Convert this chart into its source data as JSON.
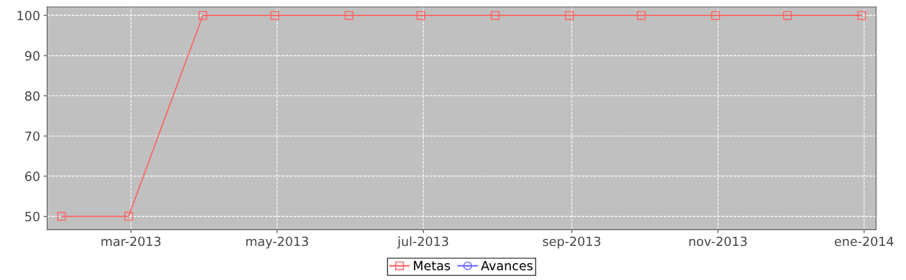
{
  "chart_data": {
    "type": "line",
    "x": [
      "2013-01-31",
      "2013-02-28",
      "2013-03-31",
      "2013-04-30",
      "2013-05-31",
      "2013-06-30",
      "2013-07-31",
      "2013-08-31",
      "2013-09-30",
      "2013-10-31",
      "2013-11-30",
      "2013-12-31"
    ],
    "series": [
      {
        "name": "Metas",
        "color": "#ff6060",
        "marker": "square",
        "values": [
          50,
          50,
          100,
          100,
          100,
          100,
          100,
          100,
          100,
          100,
          100,
          100
        ]
      },
      {
        "name": "Avances",
        "color": "#6060ff",
        "marker": "circle",
        "values": [
          null,
          null,
          null,
          null,
          null,
          null,
          null,
          null,
          null,
          null,
          null,
          null
        ]
      }
    ],
    "xlim": [
      "2013-01-25",
      "2014-01-06"
    ],
    "xticks": [
      {
        "value": "2013-03-01",
        "label": "mar-2013"
      },
      {
        "value": "2013-05-01",
        "label": "may-2013"
      },
      {
        "value": "2013-07-01",
        "label": "jul-2013"
      },
      {
        "value": "2013-09-01",
        "label": "sep-2013"
      },
      {
        "value": "2013-11-01",
        "label": "nov-2013"
      },
      {
        "value": "2014-01-01",
        "label": "ene-2014"
      }
    ],
    "ylim": [
      46.7,
      102.1
    ],
    "yticks": [
      50,
      60,
      70,
      80,
      90,
      100
    ],
    "grid": true,
    "legend": "bottom",
    "line_style": "solid"
  }
}
